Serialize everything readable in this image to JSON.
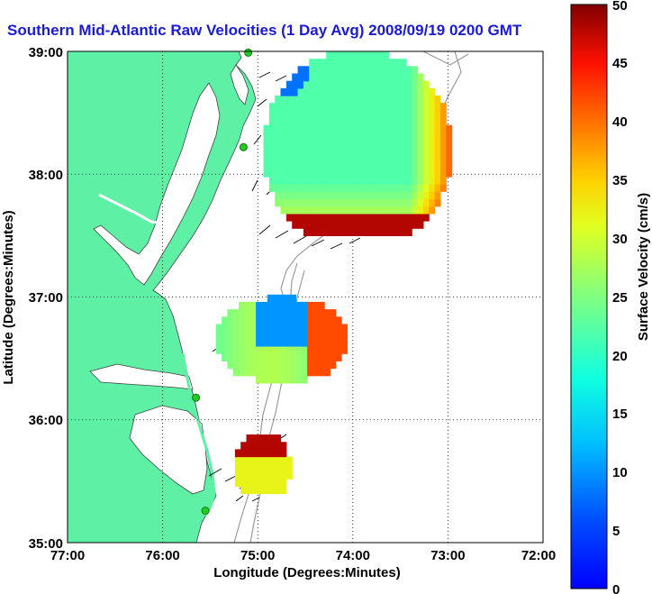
{
  "title": "Southern Mid-Atlantic Raw Velocities (1 Day Avg) 2008/09/19 0200 GMT",
  "xlabel": "Longitude (Degrees:Minutes)",
  "ylabel": "Latitude (Degrees:Minutes)",
  "colorbar_label": "Surface Velocity (cm/s)",
  "x_ticks": [
    "77:00",
    "76:00",
    "75:00",
    "74:00",
    "73:00",
    "72:00"
  ],
  "y_ticks": [
    "39:00",
    "38:00",
    "37:00",
    "36:00",
    "35:00"
  ],
  "colorbar_ticks": [
    "50",
    "45",
    "40",
    "35",
    "30",
    "25",
    "20",
    "15",
    "10",
    "5",
    "0"
  ],
  "colors": {
    "land": "#5ef0a4",
    "title": "#1a1ad8",
    "bathymetry": "#9a9a9a",
    "station": "#22cc22"
  },
  "map_extent": {
    "lon": [
      -77,
      -72
    ],
    "lat": [
      35,
      39
    ]
  },
  "colorbar_range": [
    0,
    50
  ],
  "grid": "dotted",
  "chart_data": {
    "type": "heatmap",
    "title": "Southern Mid-Atlantic Raw Velocities (1 Day Avg) 2008/09/19 0200 GMT",
    "xlabel": "Longitude (Degrees:Minutes)",
    "ylabel": "Latitude (Degrees:Minutes)",
    "colorbar_label": "Surface Velocity (cm/s)",
    "xlim": [
      -77,
      -72
    ],
    "ylim": [
      35,
      39
    ],
    "clim": [
      0,
      50
    ],
    "regions": [
      {
        "lon": [
          -75.0,
          -73.0
        ],
        "lat": [
          37.5,
          39.0
        ],
        "velocity_range": [
          5,
          50
        ]
      },
      {
        "lon": [
          -75.5,
          -74.1
        ],
        "lat": [
          36.3,
          37.0
        ],
        "velocity_range": [
          5,
          45
        ]
      },
      {
        "lon": [
          -75.3,
          -74.6
        ],
        "lat": [
          35.4,
          35.9
        ],
        "velocity_range": [
          15,
          50
        ]
      }
    ],
    "stations": [
      {
        "lon": -75.1,
        "lat": 38.99
      },
      {
        "lon": -75.15,
        "lat": 38.22
      },
      {
        "lon": -75.65,
        "lat": 36.18
      },
      {
        "lon": -75.55,
        "lat": 35.26
      }
    ]
  }
}
